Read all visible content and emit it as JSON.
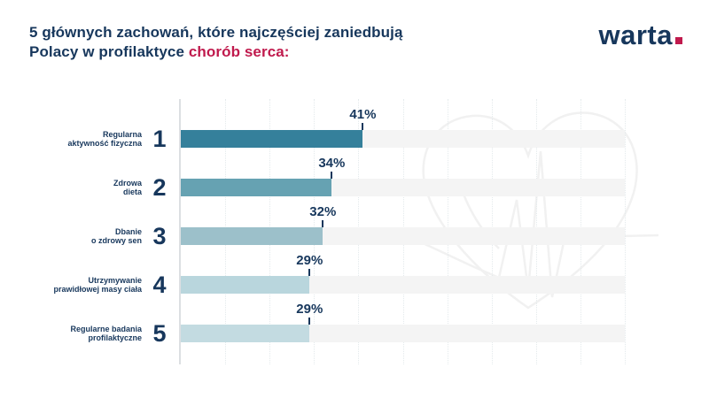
{
  "header": {
    "title_line1": "5 głównych zachowań, które najczęściej zaniedbują",
    "title_line2_prefix": "Polacy w profilaktyce",
    "title_line2_highlight": "chorób serca:"
  },
  "logo": {
    "text": "warta",
    "dot_color": "#c01a4d"
  },
  "colors": {
    "navy_text": "#17375c",
    "red_accent": "#c01a4d",
    "track": "#f4f4f4",
    "watermark": "#f1f1f1"
  },
  "chart_data": {
    "type": "bar",
    "orientation": "horizontal",
    "unit": "%",
    "xlim": [
      0,
      100
    ],
    "grid": "dotted vertical every 10%",
    "categories": [
      "Regularna aktywność fizyczna",
      "Zdrowa dieta",
      "Dbanie o zdrowy sen",
      "Utrzymywanie prawidłowej masy ciała",
      "Regularne badania profilaktyczne"
    ],
    "values": [
      41,
      34,
      32,
      29,
      29
    ],
    "rows": [
      {
        "rank": "1",
        "label_lines": [
          "Regularna",
          "aktywność fizyczna"
        ],
        "value": 41,
        "value_label": "41%",
        "bar_color": "#35809b"
      },
      {
        "rank": "2",
        "label_lines": [
          "Zdrowa",
          "dieta"
        ],
        "value": 34,
        "value_label": "34%",
        "bar_color": "#66a2b2"
      },
      {
        "rank": "3",
        "label_lines": [
          "Dbanie",
          "o zdrowy sen"
        ],
        "value": 32,
        "value_label": "32%",
        "bar_color": "#9cc0ca"
      },
      {
        "rank": "4",
        "label_lines": [
          "Utrzymywanie",
          "prawidłowej masy ciała"
        ],
        "value": 29,
        "value_label": "29%",
        "bar_color": "#b9d6dd"
      },
      {
        "rank": "5",
        "label_lines": [
          "Regularne badania",
          "profilaktyczne"
        ],
        "value": 29,
        "value_label": "29%",
        "bar_color": "#c3dbe1"
      }
    ]
  }
}
